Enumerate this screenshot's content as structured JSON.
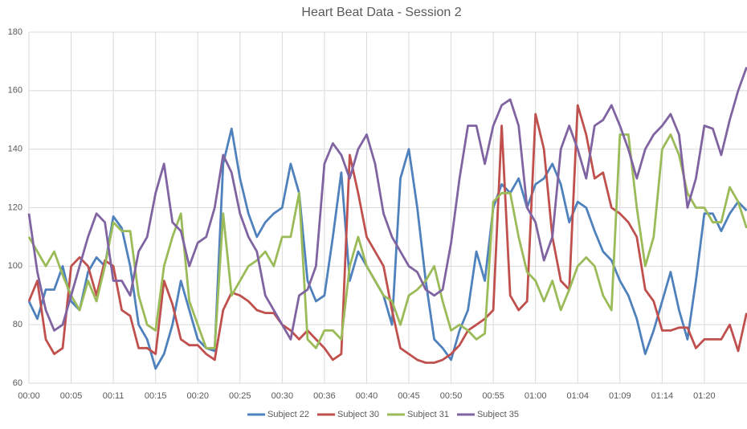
{
  "chart_data": {
    "type": "line",
    "title": "Heart Beat Data - Session 2",
    "categories": [
      "00:00",
      null,
      null,
      null,
      null,
      "00:05",
      null,
      null,
      null,
      null,
      "00:11",
      null,
      null,
      null,
      null,
      "00:15",
      null,
      null,
      null,
      null,
      "00:20",
      null,
      null,
      null,
      null,
      "00:25",
      null,
      null,
      null,
      null,
      "00:30",
      null,
      null,
      null,
      null,
      "00:36",
      null,
      null,
      null,
      null,
      "00:40",
      null,
      null,
      null,
      null,
      "00:45",
      null,
      null,
      null,
      null,
      "00:50",
      null,
      null,
      null,
      null,
      "00:55",
      null,
      null,
      null,
      null,
      "01:00",
      null,
      null,
      null,
      null,
      "01:04",
      null,
      null,
      null,
      null,
      "01:09",
      null,
      null,
      null,
      null,
      "01:14",
      null,
      null,
      null,
      null,
      "01:20",
      null,
      null,
      null,
      null,
      null
    ],
    "series": [
      {
        "name": "Subject 22",
        "color": "#4f81bd",
        "values": [
          88,
          82,
          92,
          92,
          100,
          88,
          85,
          98,
          103,
          100,
          117,
          113,
          100,
          80,
          75,
          65,
          70,
          80,
          95,
          85,
          75,
          72,
          71,
          135,
          147,
          130,
          118,
          110,
          115,
          118,
          120,
          135,
          125,
          95,
          88,
          90,
          110,
          132,
          95,
          105,
          100,
          95,
          90,
          80,
          130,
          140,
          120,
          95,
          75,
          72,
          68,
          78,
          85,
          105,
          95,
          120,
          128,
          125,
          130,
          120,
          128,
          130,
          135,
          128,
          115,
          122,
          120,
          112,
          105,
          102,
          95,
          90,
          82,
          70,
          78,
          88,
          98,
          85,
          75,
          95,
          118,
          118,
          112,
          118,
          122,
          119
        ]
      },
      {
        "name": "Subject 30",
        "color": "#c0504d",
        "values": [
          88,
          95,
          75,
          70,
          72,
          100,
          103,
          100,
          90,
          102,
          100,
          85,
          83,
          72,
          72,
          70,
          95,
          87,
          75,
          73,
          73,
          70,
          68,
          85,
          91,
          90,
          88,
          85,
          84,
          84,
          80,
          78,
          75,
          78,
          75,
          72,
          68,
          70,
          138,
          125,
          110,
          105,
          100,
          85,
          72,
          70,
          68,
          67,
          67,
          68,
          70,
          73,
          78,
          80,
          82,
          85,
          148,
          90,
          85,
          88,
          152,
          140,
          110,
          95,
          92,
          155,
          145,
          130,
          132,
          120,
          118,
          115,
          110,
          92,
          88,
          78,
          78,
          79,
          79,
          72,
          75,
          75,
          75,
          80,
          71,
          84
        ]
      },
      {
        "name": "Subject 31",
        "color": "#9bbb59",
        "values": [
          110,
          105,
          100,
          105,
          97,
          90,
          85,
          95,
          88,
          100,
          115,
          112,
          112,
          90,
          80,
          78,
          100,
          110,
          118,
          88,
          80,
          72,
          72,
          118,
          90,
          95,
          100,
          102,
          105,
          100,
          110,
          110,
          125,
          75,
          72,
          78,
          78,
          75,
          100,
          110,
          100,
          95,
          90,
          88,
          80,
          90,
          92,
          95,
          100,
          88,
          78,
          80,
          78,
          75,
          77,
          122,
          125,
          125,
          110,
          98,
          95,
          88,
          95,
          85,
          92,
          100,
          103,
          100,
          90,
          85,
          145,
          145,
          120,
          100,
          110,
          140,
          145,
          138,
          125,
          120,
          120,
          115,
          115,
          127,
          122,
          113
        ]
      },
      {
        "name": "Subject 35",
        "color": "#8064a2",
        "values": [
          118,
          98,
          85,
          78,
          80,
          90,
          100,
          110,
          118,
          115,
          95,
          95,
          90,
          105,
          110,
          125,
          135,
          115,
          112,
          100,
          108,
          110,
          120,
          138,
          132,
          118,
          110,
          105,
          90,
          85,
          80,
          75,
          90,
          92,
          100,
          135,
          142,
          138,
          130,
          140,
          145,
          135,
          118,
          110,
          105,
          100,
          98,
          92,
          90,
          92,
          108,
          130,
          148,
          148,
          135,
          148,
          155,
          157,
          148,
          120,
          115,
          102,
          110,
          140,
          148,
          140,
          130,
          148,
          150,
          155,
          148,
          140,
          130,
          140,
          145,
          148,
          152,
          145,
          120,
          130,
          148,
          147,
          138,
          150,
          160,
          168
        ]
      }
    ],
    "ylim": [
      60,
      180
    ],
    "yticks": [
      60,
      80,
      100,
      120,
      140,
      160,
      180
    ],
    "grid": true,
    "legend": "bottom"
  }
}
